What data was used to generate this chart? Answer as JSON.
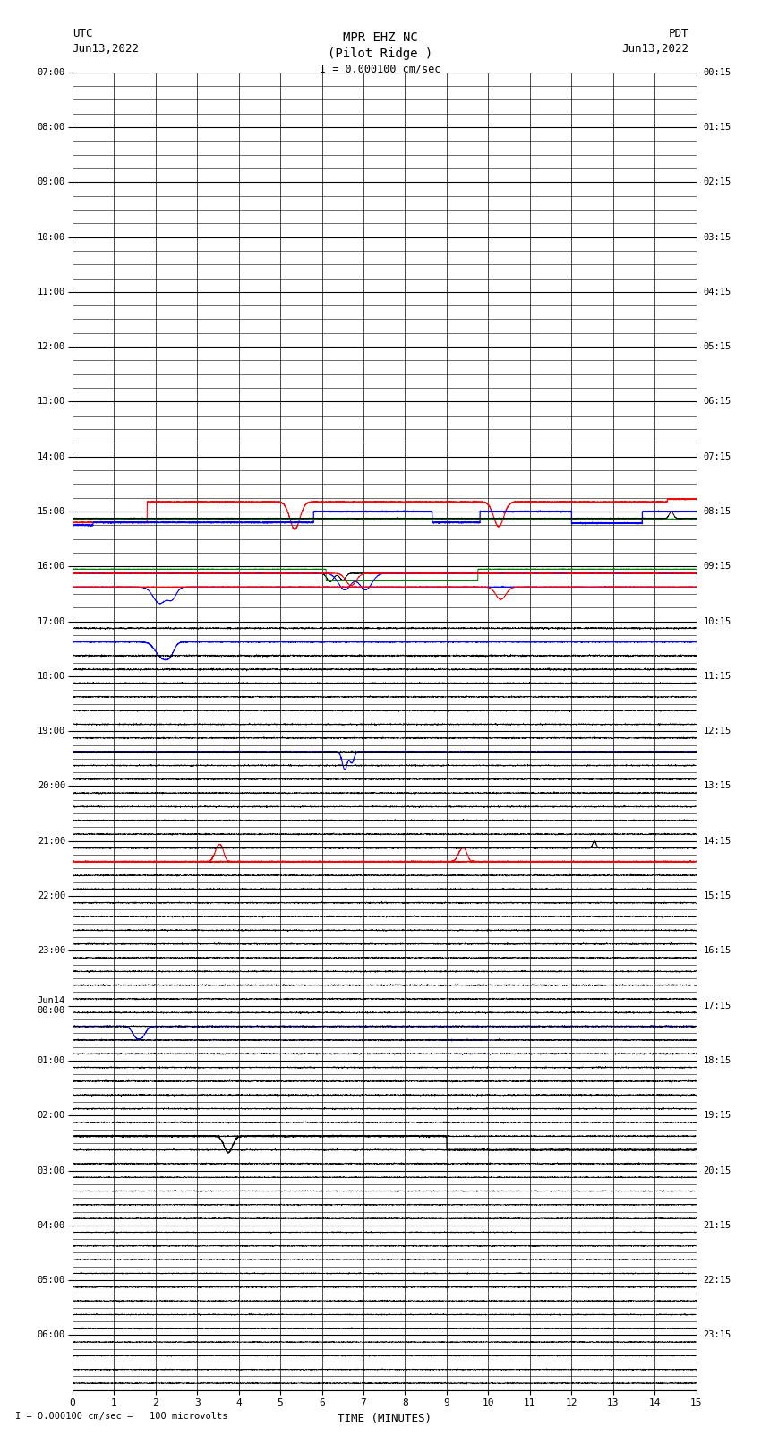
{
  "title_line1": "MPR EHZ NC",
  "title_line2": "(Pilot Ridge )",
  "scale_label": "I = 0.000100 cm/sec",
  "left_label_top": "UTC",
  "left_label_date": "Jun13,2022",
  "right_label_top": "PDT",
  "right_label_date": "Jun13,2022",
  "bottom_label": "TIME (MINUTES)",
  "scale_footnote": "I = 0.000100 cm/sec =   100 microvolts",
  "utc_times": [
    "07:00",
    "08:00",
    "09:00",
    "10:00",
    "11:00",
    "12:00",
    "13:00",
    "14:00",
    "15:00",
    "16:00",
    "17:00",
    "18:00",
    "19:00",
    "20:00",
    "21:00",
    "22:00",
    "23:00",
    "Jun14\n00:00",
    "01:00",
    "02:00",
    "03:00",
    "04:00",
    "05:00",
    "06:00"
  ],
  "pdt_times": [
    "00:15",
    "01:15",
    "02:15",
    "03:15",
    "04:15",
    "05:15",
    "06:15",
    "07:15",
    "08:15",
    "09:15",
    "10:15",
    "11:15",
    "12:15",
    "13:15",
    "14:15",
    "15:15",
    "16:15",
    "17:15",
    "18:15",
    "19:15",
    "20:15",
    "21:15",
    "22:15",
    "23:15"
  ],
  "n_rows": 24,
  "n_cols": 15,
  "sub_rows": 4,
  "bg_color": "#ffffff",
  "grid_color": "#000000",
  "fig_width": 8.5,
  "fig_height": 16.13,
  "dpi": 100
}
